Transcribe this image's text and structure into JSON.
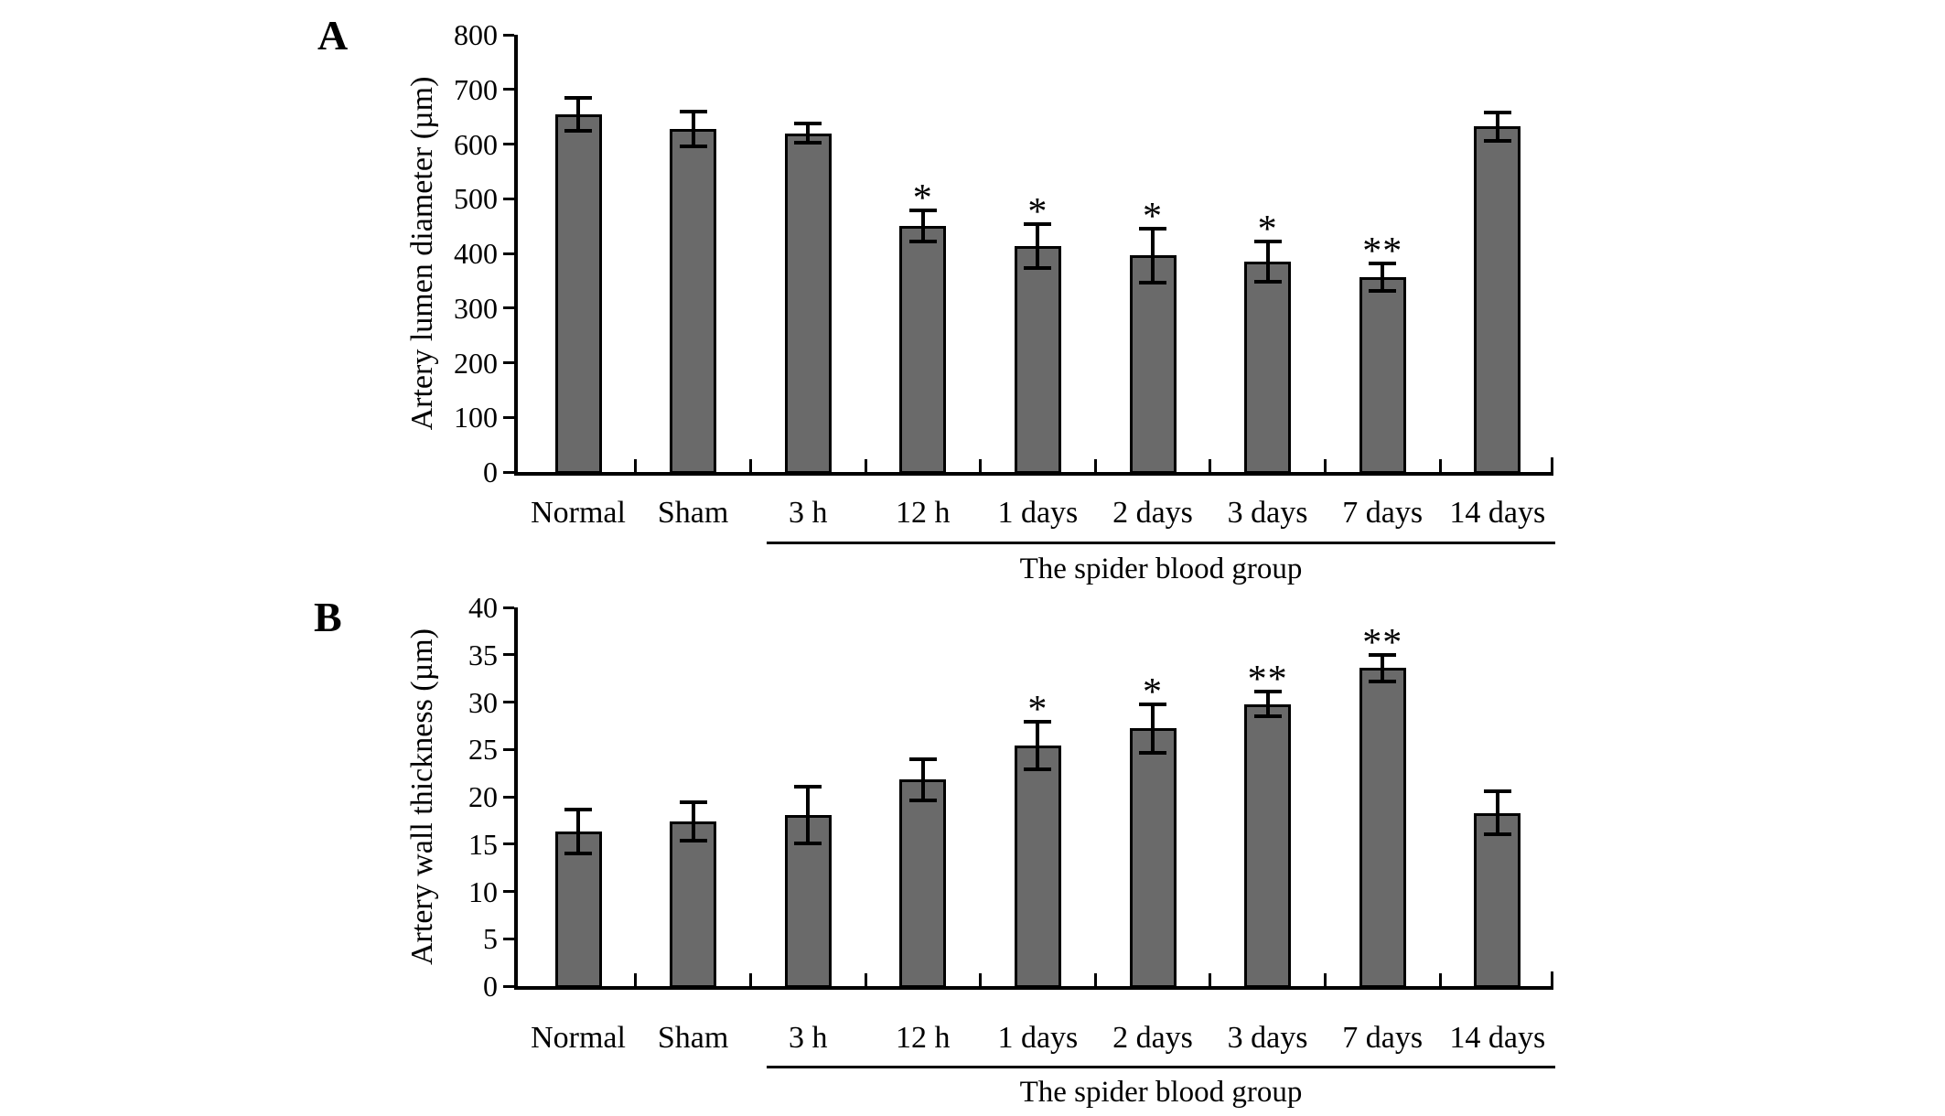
{
  "figure": {
    "background": "#ffffff",
    "bar_fill": "#6a6a6a",
    "bar_border": "#000000",
    "axis_color": "#000000"
  },
  "chart_data": [
    {
      "type": "bar",
      "panel": "A",
      "title": "",
      "xlabel": "",
      "ylabel": "Artery lumen diameter (µm)",
      "ylim": [
        0,
        800
      ],
      "ystep": 100,
      "yticks": [
        0,
        100,
        200,
        300,
        400,
        500,
        600,
        700,
        800
      ],
      "grid": false,
      "legend": "none",
      "categories": [
        "Normal",
        "Sham",
        "3 h",
        "12 h",
        "1 days",
        "2 days",
        "3 days",
        "7 days",
        "14 days"
      ],
      "values": [
        655,
        628,
        620,
        450,
        413,
        396,
        385,
        357,
        632
      ],
      "errors": [
        30,
        32,
        18,
        28,
        40,
        50,
        37,
        25,
        26
      ],
      "significance": [
        "",
        "",
        "",
        "*",
        "*",
        "*",
        "*",
        "**",
        ""
      ],
      "group_label": "The spider blood group",
      "group_start_index": 2,
      "group_end_index": 8
    },
    {
      "type": "bar",
      "panel": "B",
      "title": "",
      "xlabel": "",
      "ylabel": "Artery wall thickness (µm)",
      "ylim": [
        0,
        40
      ],
      "ystep": 5,
      "yticks": [
        0,
        5,
        10,
        15,
        20,
        25,
        30,
        35,
        40
      ],
      "grid": false,
      "legend": "none",
      "categories": [
        "Normal",
        "Sham",
        "3 h",
        "12 h",
        "1 days",
        "2 days",
        "3 days",
        "7 days",
        "14 days"
      ],
      "values": [
        16.3,
        17.4,
        18.1,
        21.8,
        25.4,
        27.2,
        29.8,
        33.6,
        18.3
      ],
      "errors": [
        2.3,
        2.0,
        3.0,
        2.2,
        2.5,
        2.6,
        1.3,
        1.4,
        2.3
      ],
      "significance": [
        "",
        "",
        "",
        "",
        "*",
        "*",
        "**",
        "**",
        ""
      ],
      "group_label": "The spider blood group",
      "group_start_index": 2,
      "group_end_index": 8
    }
  ]
}
